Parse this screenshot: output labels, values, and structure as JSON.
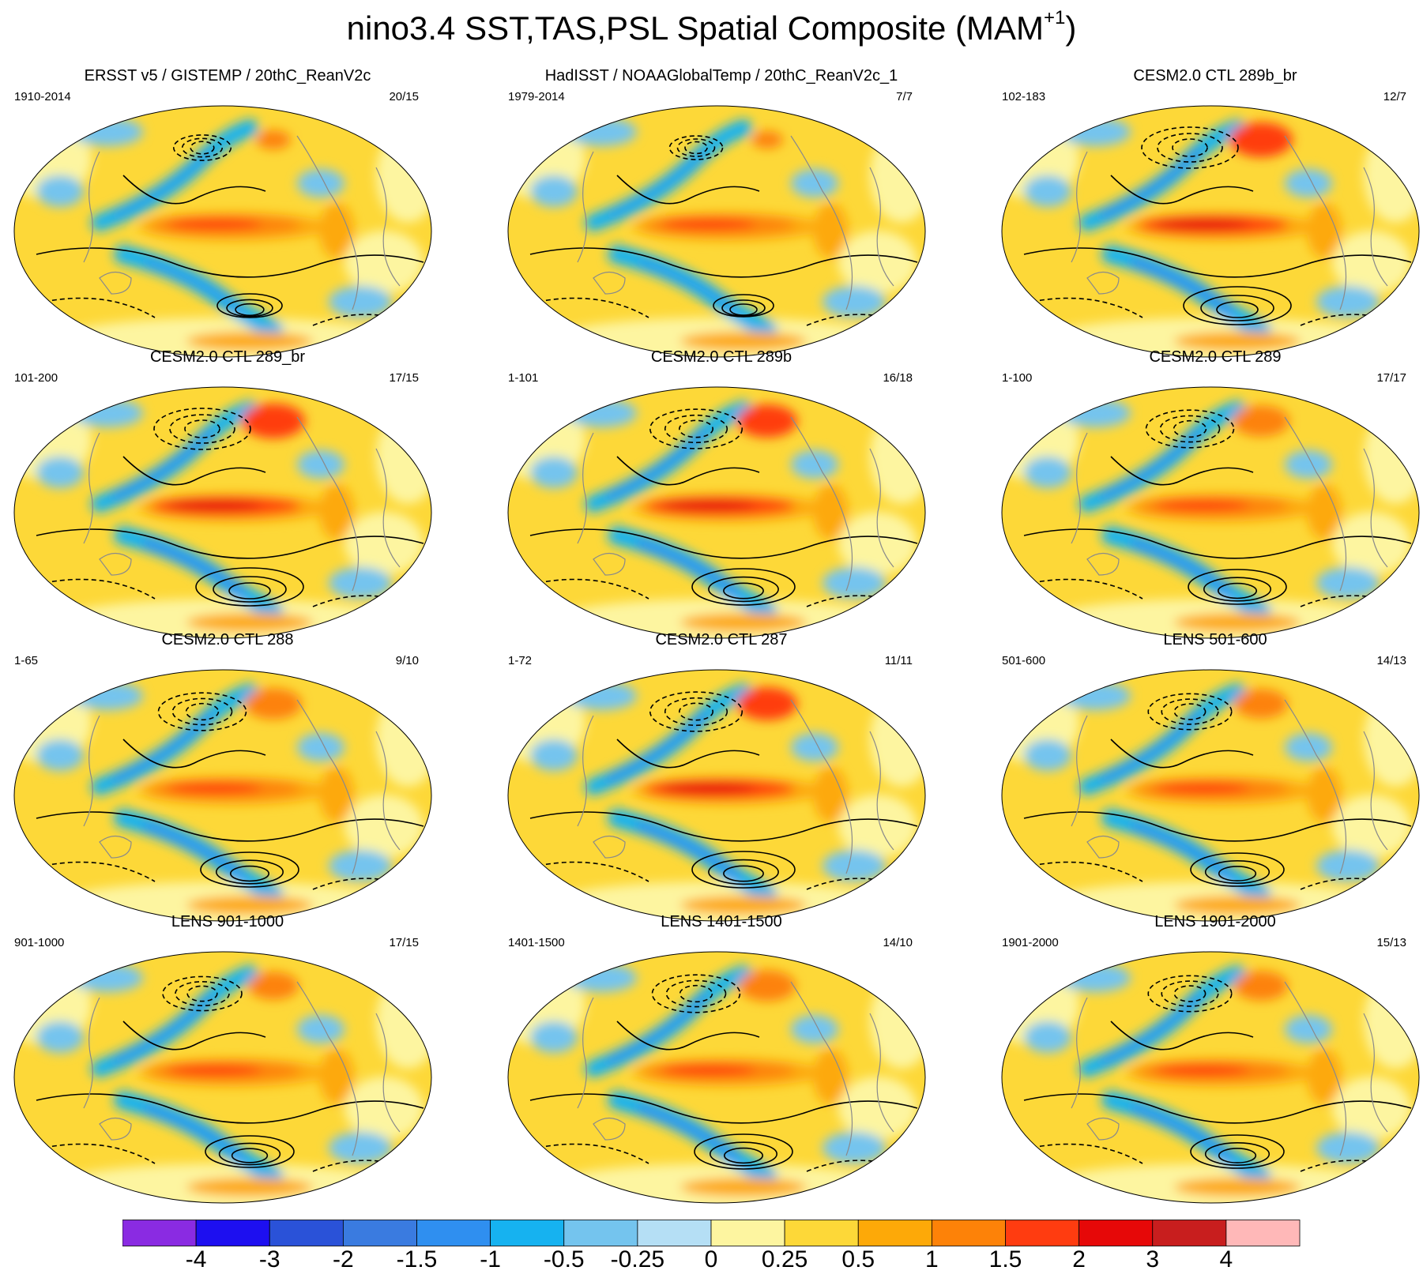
{
  "figure": {
    "title": "nino3.4 SST,TAS,PSL Spatial Composite (MAM",
    "title_superscript": "+1",
    "title_close": ")"
  },
  "chart_data": {
    "type": "map-composite-grid",
    "layout": "4 rows x 3 columns",
    "variables": [
      "SST",
      "TAS",
      "PSL"
    ],
    "contour_style": "solid = positive PSL, dashed = negative PSL",
    "panels": [
      {
        "title": "ERSST v5 / GISTEMP / 20thC_ReanV2c",
        "years": "1910-2014",
        "count": "20/15",
        "intensity": 0.55
      },
      {
        "title": "HadISST / NOAAGlobalTemp / 20thC_ReanV2c_1",
        "years": "1979-2014",
        "count": "7/7",
        "intensity": 0.5
      },
      {
        "title": "CESM2.0 CTL 289b_br",
        "years": "102-183",
        "count": "12/7",
        "intensity": 1.0
      },
      {
        "title": "CESM2.0 CTL 289_br",
        "years": "101-200",
        "count": "17/15",
        "intensity": 1.0
      },
      {
        "title": "CESM2.0 CTL 289b",
        "years": "1-101",
        "count": "16/18",
        "intensity": 0.95
      },
      {
        "title": "CESM2.0 CTL 289",
        "years": "1-100",
        "count": "17/17",
        "intensity": 0.9
      },
      {
        "title": "CESM2.0 CTL 288",
        "years": "1-65",
        "count": "9/10",
        "intensity": 0.9
      },
      {
        "title": "CESM2.0 CTL 287",
        "years": "1-72",
        "count": "11/11",
        "intensity": 0.95
      },
      {
        "title": "LENS 501-600",
        "years": "501-600",
        "count": "14/13",
        "intensity": 0.85
      },
      {
        "title": "LENS 901-1000",
        "years": "901-1000",
        "count": "17/15",
        "intensity": 0.8
      },
      {
        "title": "LENS 1401-1500",
        "years": "1401-1500",
        "count": "14/10",
        "intensity": 0.9
      },
      {
        "title": "LENS 1901-2000",
        "years": "1901-2000",
        "count": "15/13",
        "intensity": 0.85
      }
    ],
    "colorbar": {
      "labels": [
        "-4",
        "-3",
        "-2",
        "-1.5",
        "-1",
        "-0.5",
        "-0.25",
        "0",
        "0.25",
        "0.5",
        "1",
        "1.5",
        "2",
        "3",
        "4"
      ],
      "colors": [
        "#8a2be2",
        "#1d0ff0",
        "#2a52d8",
        "#3a7be0",
        "#2f8ff0",
        "#16b2f0",
        "#74c4ee",
        "#b5dff5",
        "#fdf5a0",
        "#fdd838",
        "#fda908",
        "#fd8208",
        "#ff3c10",
        "#e60808",
        "#c81e1e",
        "#ffb8b8"
      ]
    }
  }
}
